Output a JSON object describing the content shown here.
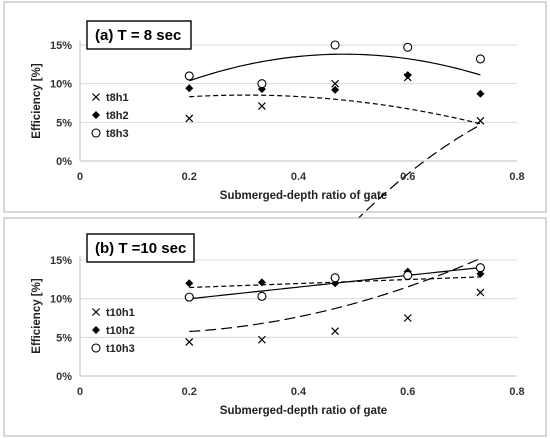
{
  "chart_data": [
    {
      "type": "scatter",
      "title": "(a)  T = 8 sec",
      "xlabel": "Submerged-depth ratio of gate",
      "ylabel": "Efficiency [%]",
      "xlim": [
        0,
        0.8
      ],
      "ylim": [
        0,
        15
      ],
      "x_ticks": [
        "0",
        "0.2",
        "0.4",
        "0.6",
        "0.8"
      ],
      "y_ticks": [
        "0%",
        "5%",
        "10%",
        "15%"
      ],
      "x_tick_values": [
        0,
        0.2,
        0.4,
        0.6,
        0.8
      ],
      "y_tick_values": [
        0,
        5,
        10,
        15
      ],
      "grid": true,
      "legend_position": "left",
      "series": [
        {
          "name": "t8h1",
          "marker": "x",
          "trend": "long-dash",
          "x": [
            0.2,
            0.333,
            0.467,
            0.6,
            0.733
          ],
          "y": [
            5.5,
            7.1,
            10.0,
            10.8,
            5.2
          ],
          "fit": [
            -0.6095,
            1.4054,
            -0.696
          ]
        },
        {
          "name": "t8h2",
          "marker": "diamond",
          "trend": "short-dash",
          "x": [
            0.2,
            0.333,
            0.467,
            0.6,
            0.733
          ],
          "y": [
            9.4,
            9.3,
            9.2,
            11.1,
            8.7
          ],
          "fit": [
            0.0669,
            0.1211,
            -0.2
          ]
        },
        {
          "name": "t8h3",
          "marker": "circle",
          "trend": "solid",
          "x": [
            0.2,
            0.333,
            0.467,
            0.6,
            0.733
          ],
          "y": [
            11.0,
            10.0,
            15.0,
            14.7,
            13.2
          ],
          "fit": [
            0.0378,
            0.4154,
            -0.43
          ]
        }
      ]
    },
    {
      "type": "scatter",
      "title": "(b)  T =10 sec",
      "xlabel": "Submerged-depth ratio of gate",
      "ylabel": "Efficiency [%]",
      "xlim": [
        0,
        0.8
      ],
      "ylim": [
        0,
        15
      ],
      "x_ticks": [
        "0",
        "0.2",
        "0.4",
        "0.6",
        "0.8"
      ],
      "y_ticks": [
        "0%",
        "5%",
        "10%",
        "15%"
      ],
      "x_tick_values": [
        0,
        0.2,
        0.4,
        0.6,
        0.8
      ],
      "y_tick_values": [
        0,
        5,
        10,
        15
      ],
      "grid": true,
      "legend_position": "left",
      "series": [
        {
          "name": "t10h1",
          "marker": "x",
          "trend": "long-dash",
          "x": [
            0.2,
            0.333,
            0.467,
            0.6,
            0.733
          ],
          "y": [
            4.4,
            4.7,
            5.8,
            7.5,
            10.8
          ],
          "fit": [
            0.0584,
            -0.054,
            0.248
          ]
        },
        {
          "name": "t10h2",
          "marker": "diamond",
          "trend": "short-dash",
          "x": [
            0.2,
            0.333,
            0.467,
            0.6,
            0.733
          ],
          "y": [
            12.0,
            12.1,
            12.0,
            13.5,
            13.2
          ],
          "fit": [
            0.1093,
            0.0257,
            0
          ]
        },
        {
          "name": "t10h3",
          "marker": "circle",
          "trend": "solid",
          "x": [
            0.2,
            0.333,
            0.467,
            0.6,
            0.733
          ],
          "y": [
            10.2,
            10.3,
            12.7,
            13.0,
            14.0
          ],
          "fit": [
            0.0847,
            0.0757,
            0
          ]
        }
      ]
    }
  ]
}
